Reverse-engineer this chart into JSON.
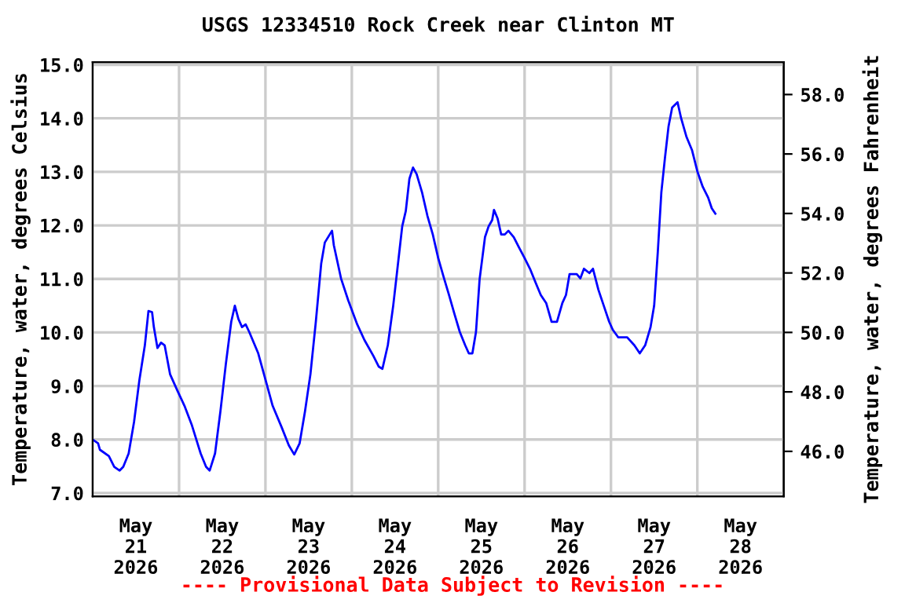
{
  "chart_data": {
    "type": "line",
    "title": "USGS 12334510 Rock Creek near Clinton MT",
    "ylabel": "Temperature, water, degrees Celsius",
    "y2label": "Temperature, water, degrees Fahrenheit",
    "annotations": [
      "---- Provisional Data Subject to Revision ----"
    ],
    "x": [
      "2026-05-21T00:00",
      "2026-05-21T01:30",
      "2026-05-21T02:00",
      "2026-05-21T04:30",
      "2026-05-21T06:00",
      "2026-05-21T07:30",
      "2026-05-21T08:30",
      "2026-05-21T10:00",
      "2026-05-21T11:30",
      "2026-05-21T13:00",
      "2026-05-21T14:30",
      "2026-05-21T15:30",
      "2026-05-21T16:30",
      "2026-05-21T17:00",
      "2026-05-21T18:00",
      "2026-05-21T19:00",
      "2026-05-21T20:00",
      "2026-05-21T21:30",
      "2026-05-21T23:30",
      "2026-05-22T01:30",
      "2026-05-22T03:30",
      "2026-05-22T06:00",
      "2026-05-22T07:30",
      "2026-05-22T08:30",
      "2026-05-22T10:00",
      "2026-05-22T11:30",
      "2026-05-22T13:00",
      "2026-05-22T14:30",
      "2026-05-22T15:30",
      "2026-05-22T16:30",
      "2026-05-22T17:30",
      "2026-05-22T18:30",
      "2026-05-22T19:30",
      "2026-05-22T22:00",
      "2026-05-23T00:00",
      "2026-05-23T02:00",
      "2026-05-23T04:30",
      "2026-05-23T06:30",
      "2026-05-23T08:00",
      "2026-05-23T09:30",
      "2026-05-23T11:00",
      "2026-05-23T12:30",
      "2026-05-23T14:00",
      "2026-05-23T15:30",
      "2026-05-23T16:30",
      "2026-05-23T18:30",
      "2026-05-23T19:00",
      "2026-05-23T21:00",
      "2026-05-23T23:00",
      "2026-05-24T01:30",
      "2026-05-24T03:30",
      "2026-05-24T06:00",
      "2026-05-24T07:30",
      "2026-05-24T08:30",
      "2026-05-24T10:00",
      "2026-05-24T11:30",
      "2026-05-24T12:30",
      "2026-05-24T14:00",
      "2026-05-24T15:00",
      "2026-05-24T16:00",
      "2026-05-24T17:00",
      "2026-05-24T18:00",
      "2026-05-24T19:30",
      "2026-05-24T21:00",
      "2026-05-24T22:30",
      "2026-05-25T00:00",
      "2026-05-25T01:30",
      "2026-05-25T03:00",
      "2026-05-25T04:30",
      "2026-05-25T06:00",
      "2026-05-25T07:30",
      "2026-05-25T08:30",
      "2026-05-25T09:30",
      "2026-05-25T10:30",
      "2026-05-25T11:30",
      "2026-05-25T13:00",
      "2026-05-25T14:00",
      "2026-05-25T15:00",
      "2026-05-25T15:30",
      "2026-05-25T16:30",
      "2026-05-25T17:30",
      "2026-05-25T18:30",
      "2026-05-25T19:30",
      "2026-05-25T21:00",
      "2026-05-25T22:30",
      "2026-05-26T00:00",
      "2026-05-26T01:30",
      "2026-05-26T03:00",
      "2026-05-26T04:30",
      "2026-05-26T06:00",
      "2026-05-26T07:30",
      "2026-05-26T09:00",
      "2026-05-26T10:30",
      "2026-05-26T11:30",
      "2026-05-26T12:30",
      "2026-05-26T14:30",
      "2026-05-26T15:30",
      "2026-05-26T16:30",
      "2026-05-26T18:00",
      "2026-05-26T19:00",
      "2026-05-26T20:30",
      "2026-05-26T22:00",
      "2026-05-26T23:30",
      "2026-05-27T00:30",
      "2026-05-27T02:00",
      "2026-05-27T04:30",
      "2026-05-27T06:30",
      "2026-05-27T08:00",
      "2026-05-27T09:30",
      "2026-05-27T11:00",
      "2026-05-27T12:00",
      "2026-05-27T13:00",
      "2026-05-27T14:00",
      "2026-05-27T15:00",
      "2026-05-27T16:00",
      "2026-05-27T17:00",
      "2026-05-27T18:30",
      "2026-05-27T19:30",
      "2026-05-27T21:00",
      "2026-05-27T22:30",
      "2026-05-28T00:00",
      "2026-05-28T01:30",
      "2026-05-28T03:00",
      "2026-05-28T04:00",
      "2026-05-28T05:00"
    ],
    "series": [
      {
        "color": "#0000ff",
        "values": [
          8.0,
          7.93,
          7.81,
          7.69,
          7.49,
          7.42,
          7.49,
          7.74,
          8.33,
          9.12,
          9.76,
          10.4,
          10.38,
          10.1,
          9.71,
          9.81,
          9.76,
          9.22,
          8.92,
          8.63,
          8.28,
          7.74,
          7.49,
          7.42,
          7.74,
          8.53,
          9.41,
          10.2,
          10.5,
          10.25,
          10.1,
          10.15,
          10.01,
          9.61,
          9.12,
          8.63,
          8.23,
          7.89,
          7.72,
          7.93,
          8.53,
          9.22,
          10.2,
          11.29,
          11.68,
          11.9,
          11.63,
          11.01,
          10.6,
          10.15,
          9.86,
          9.56,
          9.36,
          9.32,
          9.76,
          10.5,
          11.09,
          11.98,
          12.27,
          12.87,
          13.08,
          12.96,
          12.62,
          12.18,
          11.83,
          11.39,
          11.04,
          10.7,
          10.35,
          10.01,
          9.76,
          9.61,
          9.61,
          10.01,
          10.99,
          11.78,
          11.98,
          12.1,
          12.29,
          12.13,
          11.83,
          11.83,
          11.9,
          11.78,
          11.58,
          11.39,
          11.19,
          10.94,
          10.7,
          10.55,
          10.2,
          10.2,
          10.55,
          10.7,
          11.09,
          11.09,
          11.01,
          11.19,
          11.11,
          11.19,
          10.8,
          10.5,
          10.2,
          10.05,
          9.91,
          9.91,
          9.76,
          9.61,
          9.76,
          10.1,
          10.5,
          11.49,
          12.62,
          13.26,
          13.85,
          14.2,
          14.3,
          14.0,
          13.65,
          13.41,
          13.01,
          12.72,
          12.52,
          12.32,
          12.22
        ]
      }
    ],
    "xlim": [
      "2026-05-21T00:00",
      "2026-05-29T00:00"
    ],
    "xticks": [
      {
        "value": "2026-05-21T12:00",
        "label": "May\n21\n2026"
      },
      {
        "value": "2026-05-22T12:00",
        "label": "May\n22\n2026"
      },
      {
        "value": "2026-05-23T12:00",
        "label": "May\n23\n2026"
      },
      {
        "value": "2026-05-24T12:00",
        "label": "May\n24\n2026"
      },
      {
        "value": "2026-05-25T12:00",
        "label": "May\n25\n2026"
      },
      {
        "value": "2026-05-26T12:00",
        "label": "May\n26\n2026"
      },
      {
        "value": "2026-05-27T12:00",
        "label": "May\n27\n2026"
      },
      {
        "value": "2026-05-28T12:00",
        "label": "May\n28\n2026"
      },
      {
        "value": "2026-05-22T00:00",
        "label": null
      },
      {
        "value": "2026-05-23T00:00",
        "label": null
      },
      {
        "value": "2026-05-24T00:00",
        "label": null
      },
      {
        "value": "2026-05-25T00:00",
        "label": null
      },
      {
        "value": "2026-05-26T00:00",
        "label": null
      },
      {
        "value": "2026-05-27T00:00",
        "label": null
      },
      {
        "value": "2026-05-28T00:00",
        "label": null
      }
    ],
    "ylim": [
      6.94,
      15.05
    ],
    "yticks": [
      {
        "value": 7,
        "label": "7.0"
      },
      {
        "value": 8,
        "label": "8.0"
      },
      {
        "value": 9,
        "label": "9.0"
      },
      {
        "value": 10,
        "label": "10.0"
      },
      {
        "value": 11,
        "label": "11.0"
      },
      {
        "value": 12,
        "label": "12.0"
      },
      {
        "value": 13,
        "label": "13.0"
      },
      {
        "value": 14,
        "label": "14.0"
      },
      {
        "value": 15,
        "label": "15.0"
      }
    ],
    "y2lim": [
      44.49,
      59.09
    ],
    "y2ticks": [
      {
        "value": 46,
        "label": "46.0"
      },
      {
        "value": 48,
        "label": "48.0"
      },
      {
        "value": 50,
        "label": "50.0"
      },
      {
        "value": 52,
        "label": "52.0"
      },
      {
        "value": 54,
        "label": "54.0"
      },
      {
        "value": 56,
        "label": "56.0"
      },
      {
        "value": 58,
        "label": "58.0"
      }
    ],
    "grid": true,
    "line_style": "solid",
    "marker": "none"
  }
}
